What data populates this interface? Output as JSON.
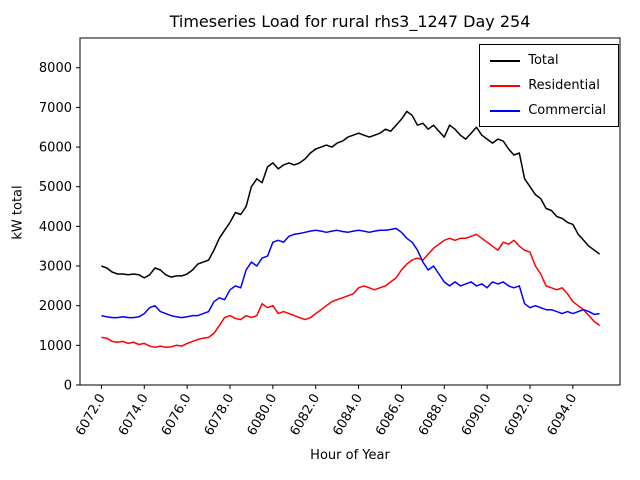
{
  "chart_data": {
    "type": "line",
    "title": "Timeseries Load for rural rhs3_1247  Day 254",
    "xlabel": "Hour of Year",
    "ylabel": "kW total",
    "xlim": [
      6071.0,
      6096.2
    ],
    "ylim": [
      0,
      8750
    ],
    "grid": false,
    "legend_position": "upper right",
    "x_ticks": [
      6072,
      6074,
      6076,
      6078,
      6080,
      6082,
      6084,
      6086,
      6088,
      6090,
      6092,
      6094
    ],
    "x_tick_labels": [
      "6072.0",
      "6074.0",
      "6076.0",
      "6078.0",
      "6080.0",
      "6082.0",
      "6084.0",
      "6086.0",
      "6088.0",
      "6090.0",
      "6092.0",
      "6094.0"
    ],
    "y_ticks": [
      0,
      1000,
      2000,
      3000,
      4000,
      5000,
      6000,
      7000,
      8000
    ],
    "y_tick_labels": [
      "0",
      "1000",
      "2000",
      "3000",
      "4000",
      "5000",
      "6000",
      "7000",
      "8000"
    ],
    "x_start": 6072.0,
    "x_step": 0.25,
    "series": [
      {
        "name": "Total",
        "color": "#000000",
        "values": [
          3000,
          2950,
          2850,
          2800,
          2800,
          2780,
          2800,
          2780,
          2700,
          2780,
          2950,
          2900,
          2780,
          2720,
          2750,
          2750,
          2800,
          2900,
          3050,
          3100,
          3150,
          3400,
          3700,
          3900,
          4100,
          4350,
          4300,
          4500,
          5000,
          5200,
          5100,
          5500,
          5600,
          5450,
          5550,
          5600,
          5550,
          5600,
          5700,
          5850,
          5950,
          6000,
          6050,
          6000,
          6100,
          6150,
          6250,
          6300,
          6350,
          6300,
          6250,
          6300,
          6350,
          6450,
          6400,
          6550,
          6700,
          6900,
          6800,
          6550,
          6600,
          6450,
          6550,
          6400,
          6250,
          6550,
          6450,
          6300,
          6200,
          6350,
          6500,
          6300,
          6200,
          6100,
          6200,
          6150,
          5950,
          5800,
          5850,
          5200,
          5000,
          4800,
          4700,
          4450,
          4400,
          4250,
          4200,
          4100,
          4050,
          3800,
          3650,
          3500,
          3400,
          3300
        ]
      },
      {
        "name": "Residential",
        "color": "#ff0000",
        "values": [
          1200,
          1180,
          1100,
          1080,
          1100,
          1050,
          1080,
          1020,
          1050,
          980,
          950,
          980,
          950,
          960,
          1000,
          980,
          1050,
          1100,
          1150,
          1180,
          1200,
          1300,
          1500,
          1700,
          1750,
          1680,
          1650,
          1750,
          1700,
          1750,
          2050,
          1950,
          2000,
          1800,
          1850,
          1800,
          1750,
          1700,
          1650,
          1700,
          1800,
          1900,
          2000,
          2100,
          2150,
          2200,
          2250,
          2300,
          2450,
          2500,
          2450,
          2400,
          2450,
          2500,
          2600,
          2700,
          2900,
          3050,
          3150,
          3200,
          3150,
          3300,
          3450,
          3550,
          3650,
          3700,
          3650,
          3700,
          3700,
          3750,
          3800,
          3700,
          3600,
          3500,
          3400,
          3600,
          3550,
          3650,
          3500,
          3400,
          3350,
          3000,
          2800,
          2500,
          2450,
          2400,
          2450,
          2300,
          2100,
          2000,
          1900,
          1750,
          1600,
          1500
        ]
      },
      {
        "name": "Commercial",
        "color": "#0000ff",
        "values": [
          1750,
          1720,
          1700,
          1700,
          1720,
          1700,
          1700,
          1720,
          1800,
          1950,
          2000,
          1850,
          1800,
          1750,
          1720,
          1700,
          1720,
          1750,
          1750,
          1800,
          1850,
          2100,
          2200,
          2150,
          2400,
          2500,
          2450,
          2900,
          3100,
          3000,
          3200,
          3250,
          3600,
          3650,
          3600,
          3750,
          3800,
          3820,
          3850,
          3880,
          3900,
          3880,
          3850,
          3880,
          3900,
          3870,
          3850,
          3880,
          3900,
          3880,
          3850,
          3880,
          3900,
          3900,
          3920,
          3950,
          3850,
          3700,
          3600,
          3400,
          3100,
          2900,
          3000,
          2800,
          2600,
          2500,
          2600,
          2500,
          2550,
          2600,
          2500,
          2550,
          2450,
          2600,
          2550,
          2600,
          2500,
          2450,
          2500,
          2050,
          1950,
          2000,
          1950,
          1900,
          1900,
          1850,
          1800,
          1850,
          1800,
          1850,
          1900,
          1850,
          1780,
          1800
        ]
      }
    ]
  }
}
